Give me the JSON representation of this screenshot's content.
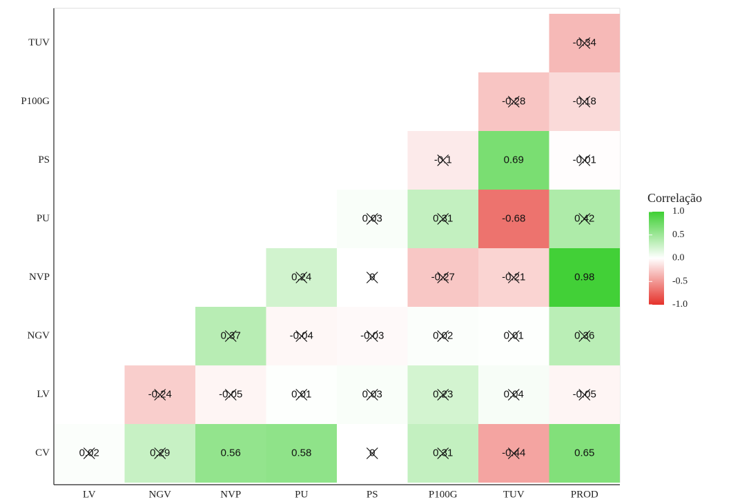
{
  "chart_data": {
    "type": "heatmap",
    "x_categories": [
      "LV",
      "NGV",
      "NVP",
      "PU",
      "PS",
      "P100G",
      "TUV",
      "PROD"
    ],
    "y_categories": [
      "CV",
      "LV",
      "NGV",
      "NVP",
      "PU",
      "PS",
      "P100G",
      "TUV"
    ],
    "values": [
      [
        0.02,
        0.29,
        0.56,
        0.58,
        0,
        0.31,
        -0.44,
        0.65
      ],
      [
        null,
        -0.24,
        -0.05,
        0.01,
        0.03,
        0.23,
        0.04,
        -0.05
      ],
      [
        null,
        null,
        0.37,
        -0.04,
        -0.03,
        0.02,
        0.01,
        0.36
      ],
      [
        null,
        null,
        null,
        0.24,
        0,
        -0.27,
        -0.21,
        0.98
      ],
      [
        null,
        null,
        null,
        null,
        0.03,
        0.31,
        -0.68,
        0.42
      ],
      [
        null,
        null,
        null,
        null,
        null,
        -0.1,
        0.69,
        -0.01
      ],
      [
        null,
        null,
        null,
        null,
        null,
        null,
        -0.28,
        -0.18
      ],
      [
        null,
        null,
        null,
        null,
        null,
        null,
        null,
        -0.34
      ]
    ],
    "crossed": [
      [
        true,
        true,
        false,
        false,
        true,
        true,
        true,
        false
      ],
      [
        null,
        true,
        true,
        true,
        true,
        true,
        true,
        true
      ],
      [
        null,
        null,
        true,
        true,
        true,
        true,
        true,
        true
      ],
      [
        null,
        null,
        null,
        true,
        true,
        true,
        true,
        false
      ],
      [
        null,
        null,
        null,
        null,
        true,
        true,
        false,
        true
      ],
      [
        null,
        null,
        null,
        null,
        null,
        true,
        false,
        true
      ],
      [
        null,
        null,
        null,
        null,
        null,
        null,
        true,
        true
      ],
      [
        null,
        null,
        null,
        null,
        null,
        null,
        null,
        true
      ]
    ],
    "legend_title": "Correlação",
    "colorbar_lim": [
      -1,
      1
    ],
    "colorbar_ticks": [
      {
        "value": 1,
        "label": "1.0"
      },
      {
        "value": 0.5,
        "label": "0.5"
      },
      {
        "value": 0,
        "label": "0.0"
      },
      {
        "value": -0.5,
        "label": "-0.5"
      },
      {
        "value": -1,
        "label": "-1.0"
      }
    ],
    "colors": {
      "low": "#e5312a",
      "mid": "#ffffff",
      "high": "#3ecf33"
    }
  }
}
